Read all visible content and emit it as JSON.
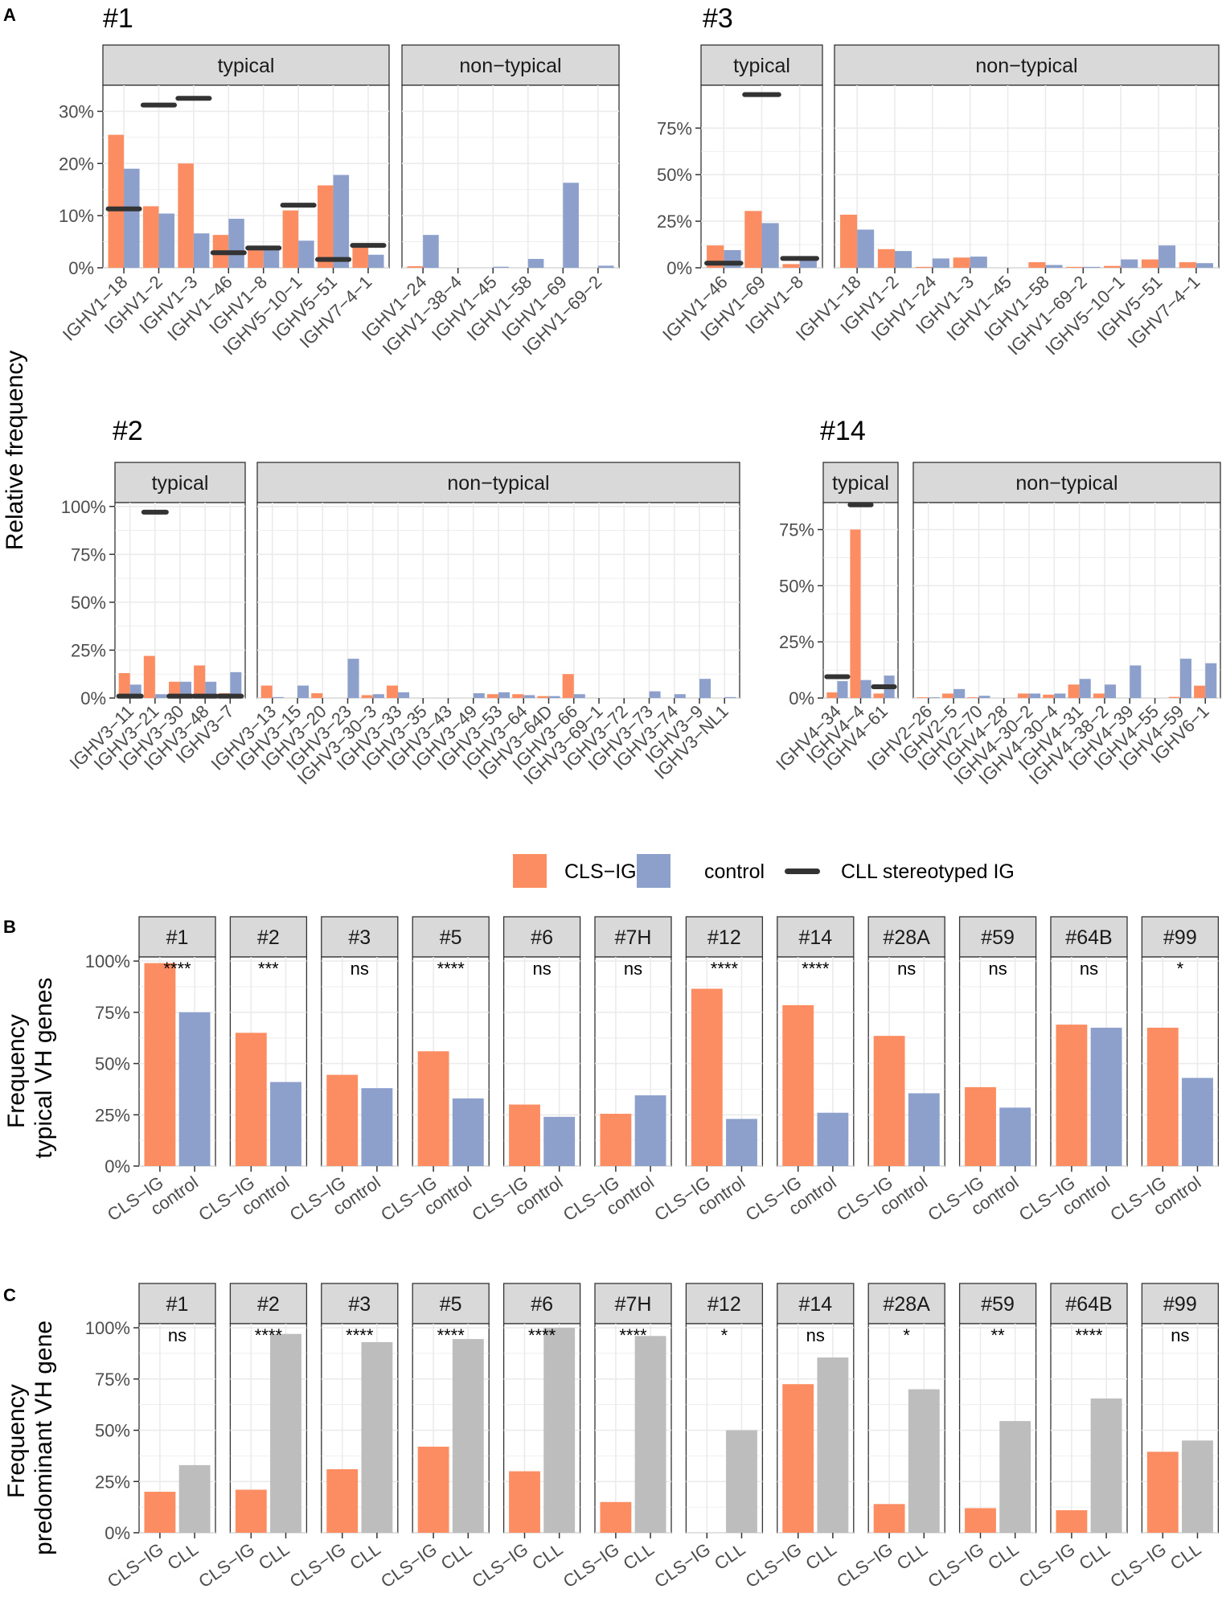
{
  "colors": {
    "cls": "#FC8D62",
    "control": "#8DA0CB",
    "cll": "#BDBDBD",
    "stereo": "#333333",
    "strip_bg": "#D9D9D9",
    "strip_border": "#333333",
    "grid": "#EBEBEB"
  },
  "panel_letters": {
    "a": "A",
    "b": "B",
    "c": "C"
  },
  "y_axis_title_a": "Relative frequency",
  "y_axis_title_b": [
    "Frequency",
    "typical VH genes"
  ],
  "y_axis_title_c": [
    "Frequency",
    "predominant VH gene"
  ],
  "legend": {
    "cls": "CLS−IG",
    "control": "control",
    "stereo": "CLL stereotyped IG"
  },
  "chart_data": [
    {
      "id": "A1",
      "type": "bar",
      "title": "#1",
      "ylabel": "Relative frequency",
      "ylim": [
        0,
        0.35
      ],
      "yticks": [
        0,
        0.1,
        0.2,
        0.3
      ],
      "ytick_labels": [
        "0%",
        "10%",
        "20%",
        "30%"
      ],
      "facets": [
        {
          "strip": "typical",
          "categories": [
            "IGHV1−18",
            "IGHV1−2",
            "IGHV1−3",
            "IGHV1−46",
            "IGHV1−8",
            "IGHV5−10−1",
            "IGHV5−51",
            "IGHV7−4−1"
          ],
          "series": [
            {
              "name": "CLS−IG",
              "values": [
                0.255,
                0.118,
                0.2,
                0.063,
                0.04,
                0.11,
                0.158,
                0.045
              ]
            },
            {
              "name": "control",
              "values": [
                0.19,
                0.104,
                0.066,
                0.094,
                0.038,
                0.052,
                0.178,
                0.025
              ]
            }
          ],
          "stereotyped": [
            0.113,
            0.312,
            0.325,
            0.029,
            0.038,
            0.12,
            0.016,
            0.043
          ]
        },
        {
          "strip": "non−typical",
          "categories": [
            "IGHV1−24",
            "IGHV1−38−4",
            "IGHV1−45",
            "IGHV1−58",
            "IGHV1−69",
            "IGHV1−69−2"
          ],
          "series": [
            {
              "name": "CLS−IG",
              "values": [
                0.003,
                0,
                0,
                0,
                0,
                0
              ]
            },
            {
              "name": "control",
              "values": [
                0.063,
                0,
                0.002,
                0.017,
                0.163,
                0.004
              ]
            }
          ]
        }
      ]
    },
    {
      "id": "A3",
      "type": "bar",
      "title": "#3",
      "ylabel": "Relative frequency",
      "ylim": [
        0,
        0.98
      ],
      "yticks": [
        0,
        0.25,
        0.5,
        0.75
      ],
      "ytick_labels": [
        "0%",
        "25%",
        "50%",
        "75%"
      ],
      "facets": [
        {
          "strip": "typical",
          "categories": [
            "IGHV1−46",
            "IGHV1−69",
            "IGHV1−8"
          ],
          "series": [
            {
              "name": "CLS−IG",
              "values": [
                0.12,
                0.305,
                0.02
              ]
            },
            {
              "name": "control",
              "values": [
                0.095,
                0.24,
                0.05
              ]
            }
          ],
          "stereotyped": [
            0.025,
            0.93,
            0.05
          ]
        },
        {
          "strip": "non−typical",
          "categories": [
            "IGHV1−18",
            "IGHV1−2",
            "IGHV1−24",
            "IGHV1−3",
            "IGHV1−45",
            "IGHV1−58",
            "IGHV1−69−2",
            "IGHV5−10−1",
            "IGHV5−51",
            "IGHV7−4−1"
          ],
          "series": [
            {
              "name": "CLS−IG",
              "values": [
                0.285,
                0.1,
                0.005,
                0.055,
                0,
                0.03,
                0.005,
                0.01,
                0.045,
                0.03
              ]
            },
            {
              "name": "control",
              "values": [
                0.205,
                0.09,
                0.05,
                0.06,
                0,
                0.015,
                0.005,
                0.045,
                0.12,
                0.025
              ]
            }
          ]
        }
      ]
    },
    {
      "id": "A2",
      "type": "bar",
      "title": "#2",
      "ylabel": "Relative frequency",
      "ylim": [
        0,
        1.02
      ],
      "yticks": [
        0,
        0.25,
        0.5,
        0.75,
        1.0
      ],
      "ytick_labels": [
        "0%",
        "25%",
        "50%",
        "75%",
        "100%"
      ],
      "facets": [
        {
          "strip": "typical",
          "categories": [
            "IGHV3−11",
            "IGHV3−21",
            "IGHV3−30",
            "IGHV3−48",
            "IGHV3−7"
          ],
          "series": [
            {
              "name": "CLS−IG",
              "values": [
                0.13,
                0.22,
                0.085,
                0.17,
                0.025
              ]
            },
            {
              "name": "control",
              "values": [
                0.07,
                0.02,
                0.085,
                0.085,
                0.135
              ]
            }
          ],
          "stereotyped": [
            0.01,
            0.97,
            0.01,
            0.01,
            0.01
          ]
        },
        {
          "strip": "non−typical",
          "categories": [
            "IGHV3−13",
            "IGHV3−15",
            "IGHV3−20",
            "IGHV3−23",
            "IGHV3−30−3",
            "IGHV3−33",
            "IGHV3−35",
            "IGHV3−43",
            "IGHV3−49",
            "IGHV3−53",
            "IGHV3−64",
            "IGHV3−64D",
            "IGHV3−66",
            "IGHV3−69−1",
            "IGHV3−72",
            "IGHV3−73",
            "IGHV3−74",
            "IGHV3−9",
            "IGHV3−NL1"
          ],
          "series": [
            {
              "name": "CLS−IG",
              "values": [
                0.065,
                0,
                0.025,
                0,
                0.015,
                0.065,
                0,
                0,
                0,
                0.02,
                0.02,
                0.01,
                0.125,
                0,
                0,
                0,
                0,
                0,
                0
              ]
            },
            {
              "name": "control",
              "values": [
                0.005,
                0.065,
                0,
                0.205,
                0.02,
                0.03,
                0,
                0,
                0.025,
                0.03,
                0.015,
                0.01,
                0.02,
                0,
                0,
                0.035,
                0.02,
                0.1,
                0.005
              ]
            }
          ]
        }
      ]
    },
    {
      "id": "A14",
      "type": "bar",
      "title": "#14",
      "ylabel": "Relative frequency",
      "ylim": [
        0,
        0.87
      ],
      "yticks": [
        0,
        0.25,
        0.5,
        0.75
      ],
      "ytick_labels": [
        "0%",
        "25%",
        "50%",
        "75%"
      ],
      "facets": [
        {
          "strip": "typical",
          "categories": [
            "IGHV4−34",
            "IGHV4−4",
            "IGHV4−61"
          ],
          "series": [
            {
              "name": "CLS−IG",
              "values": [
                0.025,
                0.75,
                0.02
              ]
            },
            {
              "name": "control",
              "values": [
                0.075,
                0.08,
                0.1
              ]
            }
          ],
          "stereotyped": [
            0.095,
            0.86,
            0.05
          ]
        },
        {
          "strip": "non−typical",
          "categories": [
            "IGHV2−26",
            "IGHV2−5",
            "IGHV2−70",
            "IGHV4−28",
            "IGHV4−30−2",
            "IGHV4−30−4",
            "IGHV4−31",
            "IGHV4−38−2",
            "IGHV4−39",
            "IGHV4−55",
            "IGHV4−59",
            "IGHV6−1"
          ],
          "series": [
            {
              "name": "CLS−IG",
              "values": [
                0.003,
                0.02,
                0.003,
                0,
                0.02,
                0.015,
                0.06,
                0.02,
                0,
                0,
                0.005,
                0.055
              ]
            },
            {
              "name": "control",
              "values": [
                0.003,
                0.04,
                0.01,
                0,
                0.02,
                0.02,
                0.085,
                0.06,
                0.145,
                0,
                0.175,
                0.155
              ]
            }
          ]
        }
      ]
    },
    {
      "id": "B",
      "type": "bar",
      "ylabel": "Frequency typical VH genes",
      "ylim": [
        0,
        1.02
      ],
      "yticks": [
        0,
        0.25,
        0.5,
        0.75,
        1.0
      ],
      "ytick_labels": [
        "0%",
        "25%",
        "50%",
        "75%",
        "100%"
      ],
      "categories": [
        "CLS−IG",
        "control"
      ],
      "facets": [
        {
          "strip": "#1",
          "values": [
            0.99,
            0.75
          ],
          "sig": "****"
        },
        {
          "strip": "#2",
          "values": [
            0.65,
            0.41
          ],
          "sig": "***"
        },
        {
          "strip": "#3",
          "values": [
            0.445,
            0.38
          ],
          "sig": "ns"
        },
        {
          "strip": "#5",
          "values": [
            0.56,
            0.33
          ],
          "sig": "****"
        },
        {
          "strip": "#6",
          "values": [
            0.3,
            0.24
          ],
          "sig": "ns"
        },
        {
          "strip": "#7H",
          "values": [
            0.255,
            0.345
          ],
          "sig": "ns"
        },
        {
          "strip": "#12",
          "values": [
            0.865,
            0.23
          ],
          "sig": "****"
        },
        {
          "strip": "#14",
          "values": [
            0.785,
            0.26
          ],
          "sig": "****"
        },
        {
          "strip": "#28A",
          "values": [
            0.635,
            0.355
          ],
          "sig": "ns"
        },
        {
          "strip": "#59",
          "values": [
            0.385,
            0.285
          ],
          "sig": "ns"
        },
        {
          "strip": "#64B",
          "values": [
            0.69,
            0.675
          ],
          "sig": "ns"
        },
        {
          "strip": "#99",
          "values": [
            0.675,
            0.43
          ],
          "sig": "*"
        }
      ]
    },
    {
      "id": "C",
      "type": "bar",
      "ylabel": "Frequency predominant VH gene",
      "ylim": [
        0,
        1.02
      ],
      "yticks": [
        0,
        0.25,
        0.5,
        0.75,
        1.0
      ],
      "ytick_labels": [
        "0%",
        "25%",
        "50%",
        "75%",
        "100%"
      ],
      "categories": [
        "CLS−IG",
        "CLL"
      ],
      "facets": [
        {
          "strip": "#1",
          "values": [
            0.2,
            0.33
          ],
          "sig": "ns"
        },
        {
          "strip": "#2",
          "values": [
            0.21,
            0.97
          ],
          "sig": "****"
        },
        {
          "strip": "#3",
          "values": [
            0.31,
            0.93
          ],
          "sig": "****"
        },
        {
          "strip": "#5",
          "values": [
            0.42,
            0.945
          ],
          "sig": "****"
        },
        {
          "strip": "#6",
          "values": [
            0.3,
            1.0
          ],
          "sig": "****"
        },
        {
          "strip": "#7H",
          "values": [
            0.15,
            0.96
          ],
          "sig": "****"
        },
        {
          "strip": "#12",
          "values": [
            0,
            0.5
          ],
          "sig": "*"
        },
        {
          "strip": "#14",
          "values": [
            0.725,
            0.855
          ],
          "sig": "ns"
        },
        {
          "strip": "#28A",
          "values": [
            0.14,
            0.7
          ],
          "sig": "*"
        },
        {
          "strip": "#59",
          "values": [
            0.12,
            0.545
          ],
          "sig": "**"
        },
        {
          "strip": "#64B",
          "values": [
            0.11,
            0.655
          ],
          "sig": "****"
        },
        {
          "strip": "#99",
          "values": [
            0.395,
            0.45
          ],
          "sig": "ns"
        }
      ]
    }
  ]
}
